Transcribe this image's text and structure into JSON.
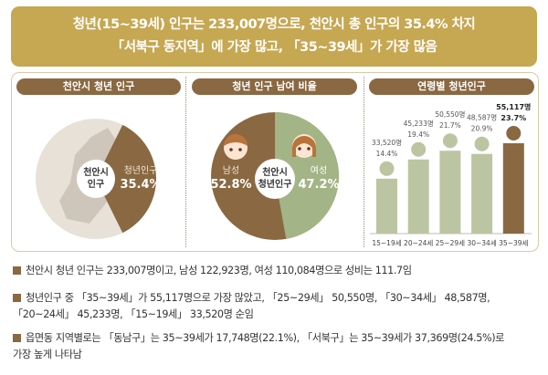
{
  "banner": {
    "line1": "청년(15~39세) 인구는 233,007명으로, 천안시 총 인구의 35.4% 차지",
    "line2": "「서북구 동지역」에 가장 많고, 「35~39세」가 가장 많음"
  },
  "panels": {
    "p1_title": "천안시 청년 인구",
    "p2_title": "청년 인구 남여 비율",
    "p3_title": "연령별 청년인구"
  },
  "colors": {
    "brown": "#8a6842",
    "green": "#a3b486",
    "beige": "#e8e1d8",
    "gold": "#c6a752"
  },
  "chart_data": [
    {
      "type": "pie",
      "center_label": [
        "천안시",
        "인구"
      ],
      "slices": [
        {
          "name": "청년인구",
          "value": 35.4
        },
        {
          "name": "",
          "value": 64.6
        }
      ]
    },
    {
      "type": "pie",
      "center_label": [
        "천안시",
        "청년인구"
      ],
      "slices": [
        {
          "name": "남성",
          "value": 52.8
        },
        {
          "name": "여성",
          "value": 47.2
        }
      ]
    },
    {
      "type": "bar",
      "categories": [
        "15~19세",
        "20~24세",
        "25~29세",
        "30~34세",
        "35~39세"
      ],
      "values": [
        33520,
        45233,
        50550,
        48587,
        55117
      ],
      "value_labels": [
        "33,520명",
        "45,233명",
        "50,550명",
        "48,587명",
        "55,117명"
      ],
      "percent_labels": [
        "14.4%",
        "19.4%",
        "21.7%",
        "20.9%",
        "23.7%"
      ],
      "highlight": "35~39세"
    }
  ],
  "bullets": [
    "천안시 청년 인구는 233,007명이고, 남성 122,923명, 여성 110,084명으로 성비는 111.7임",
    "청년인구 중 「35~39세」가 55,117명으로 가장 많았고, 「25~29세」 50,550명, 「30~34세」 48,587명,",
    "「20~24세」 45,233명, 「15~19세」 33,520명 순임",
    "읍면동 지역별로는 「동남구」는 35~39세가 17,748명(22.1%), 「서북구」는 35~39세가 37,369명(24.5%)로",
    "가장 높게 나타남"
  ]
}
